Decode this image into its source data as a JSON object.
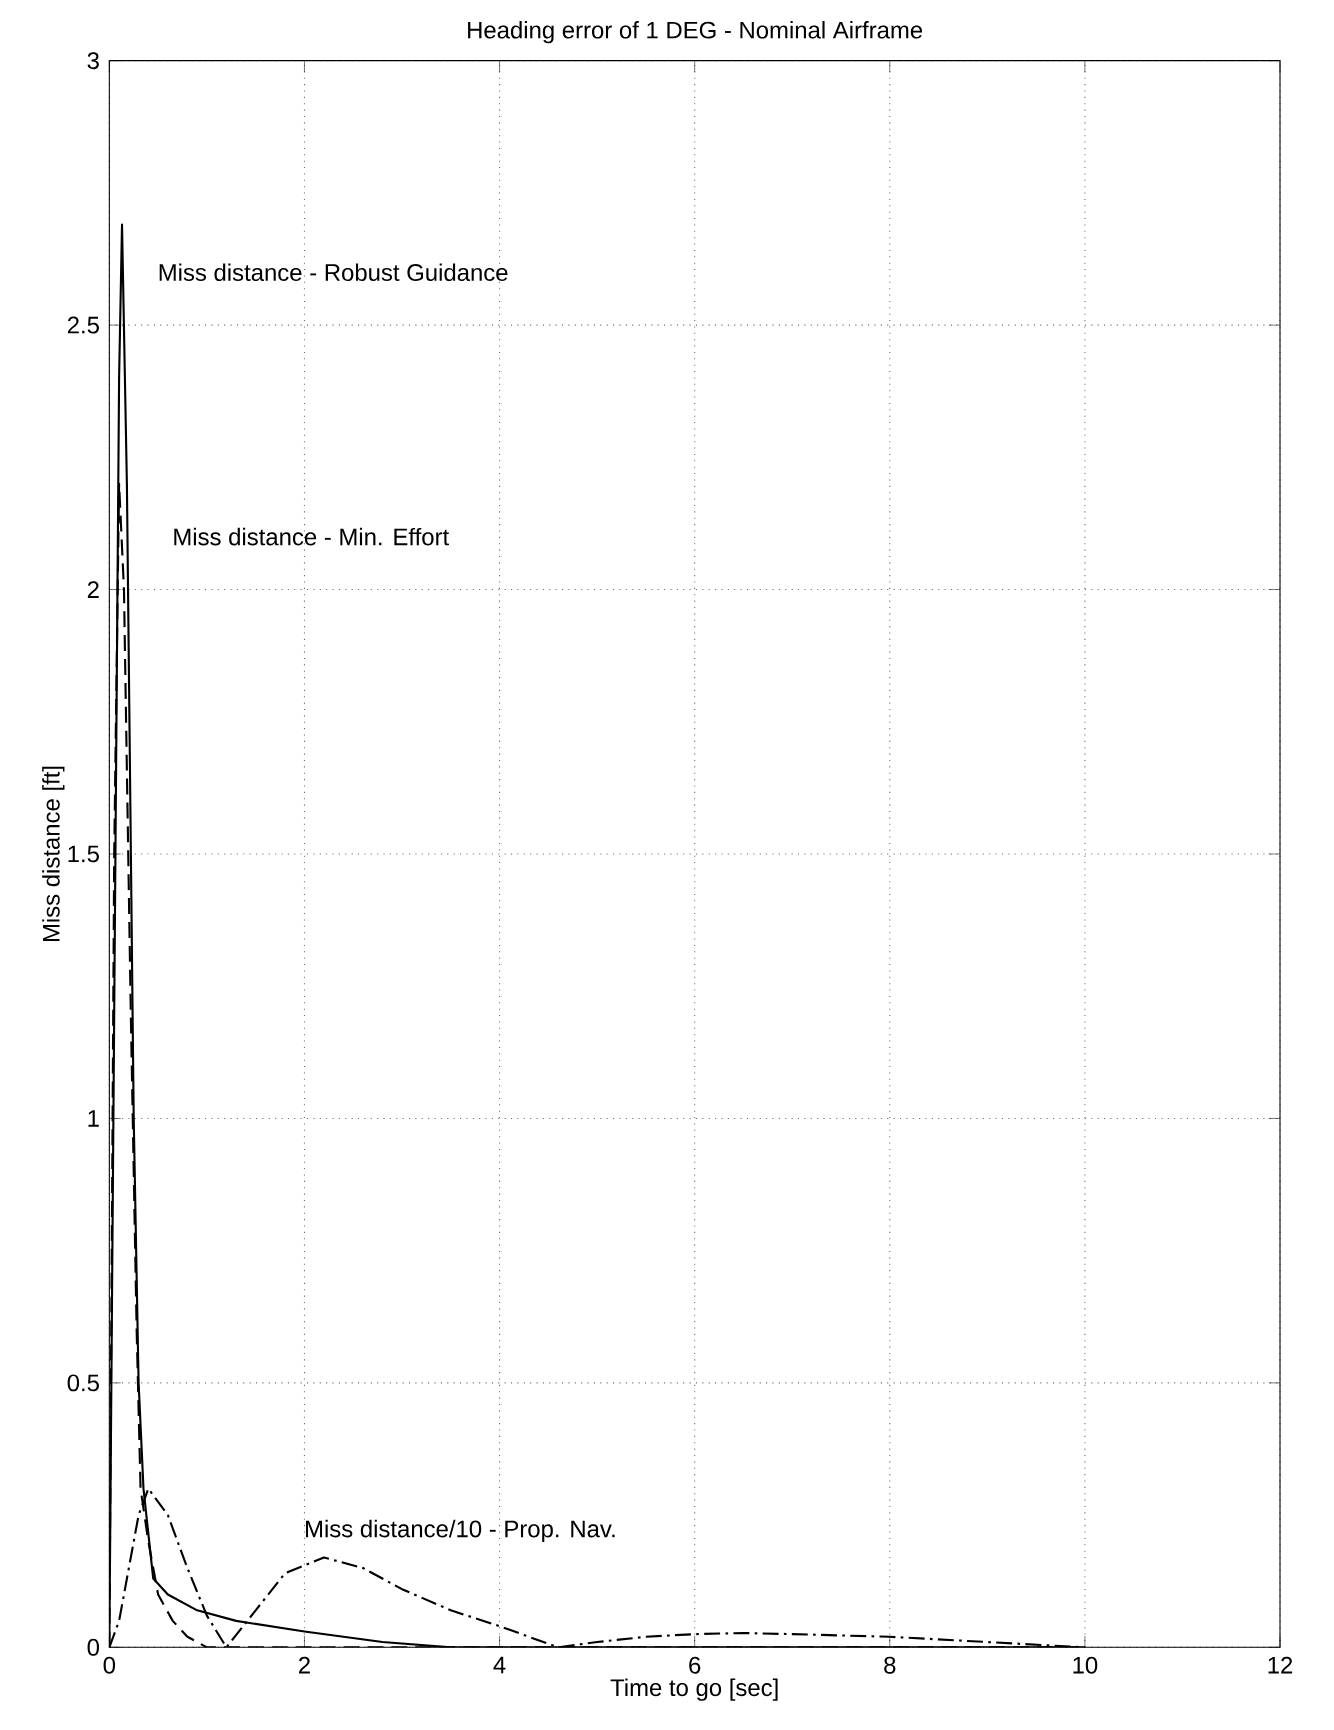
{
  "chart_data": {
    "type": "line",
    "title": "Heading error of 1 DEG - Nominal Airframe",
    "xlabel": "Time to go [sec]",
    "ylabel": "Miss distance [ft]",
    "xlim": [
      0,
      12
    ],
    "ylim": [
      0,
      3
    ],
    "xticks": [
      0,
      2,
      4,
      6,
      8,
      10,
      12
    ],
    "yticks": [
      0,
      0.5,
      1,
      1.5,
      2,
      2.5,
      3
    ],
    "grid": true,
    "series": [
      {
        "name": "Miss distance - Robust Guidance",
        "color": "#000000",
        "line_style": "solid",
        "x": [
          0,
          0.05,
          0.1,
          0.13,
          0.18,
          0.25,
          0.3,
          0.35,
          0.45,
          0.6,
          0.9,
          1.3,
          2,
          2.8,
          3.5,
          5,
          8,
          10
        ],
        "values": [
          0,
          1.2,
          2.4,
          2.69,
          2.2,
          1.0,
          0.5,
          0.3,
          0.13,
          0.1,
          0.07,
          0.05,
          0.03,
          0.01,
          0,
          0,
          0,
          0
        ]
      },
      {
        "name": "Miss distance - Min. Effort",
        "color": "#000000",
        "line_style": "dashed",
        "x": [
          0,
          0.05,
          0.1,
          0.15,
          0.22,
          0.28,
          0.32,
          0.4,
          0.5,
          0.65,
          0.8,
          1.0,
          2,
          4,
          6,
          8,
          10
        ],
        "values": [
          0,
          1.5,
          2.2,
          2.0,
          1.2,
          0.6,
          0.3,
          0.2,
          0.1,
          0.05,
          0.02,
          0,
          0,
          0,
          0,
          0,
          0
        ]
      },
      {
        "name": "Miss distance/10 - Prop. Nav.",
        "color": "#000000",
        "line_style": "dashdot",
        "x": [
          0,
          0.1,
          0.2,
          0.3,
          0.4,
          0.6,
          0.8,
          1.0,
          1.2,
          1.5,
          1.8,
          2.2,
          2.6,
          3,
          3.5,
          4,
          4.6,
          5,
          5.5,
          6,
          6.5,
          7,
          8,
          9,
          10
        ],
        "values": [
          0,
          0.05,
          0.15,
          0.25,
          0.3,
          0.25,
          0.15,
          0.06,
          0,
          0.07,
          0.14,
          0.17,
          0.15,
          0.11,
          0.07,
          0.04,
          0,
          0.01,
          0.02,
          0.025,
          0.027,
          0.025,
          0.02,
          0.01,
          0
        ]
      }
    ]
  }
}
